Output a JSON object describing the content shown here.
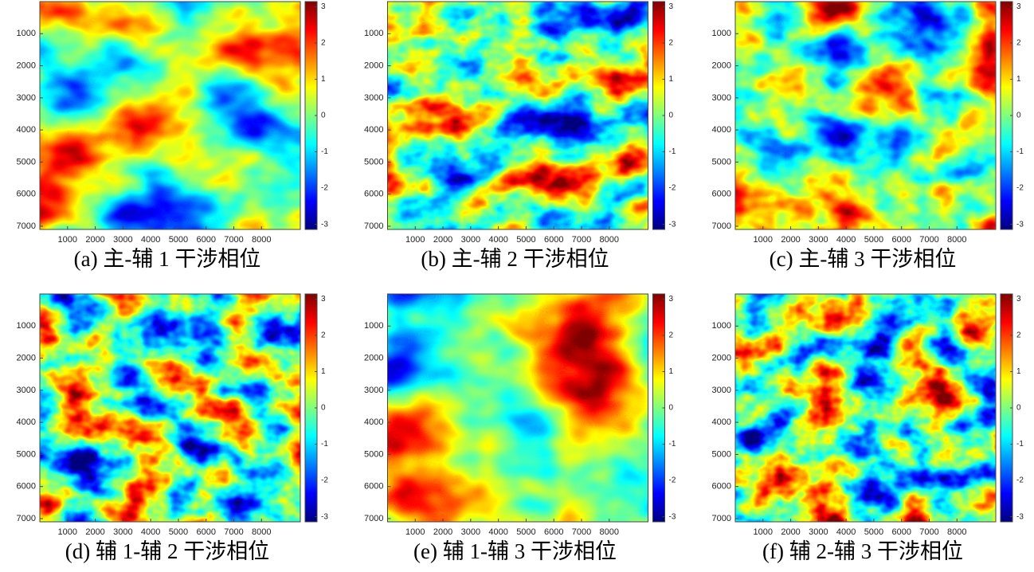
{
  "chart_data": [
    {
      "type": "heatmap",
      "caption": "(a)  主-辅 1 干涉相位",
      "colormap": "jet",
      "xlim": [
        0,
        9400
      ],
      "ylim": [
        0,
        7100
      ],
      "xticks": [
        1000,
        2000,
        3000,
        4000,
        5000,
        6000,
        7000,
        8000
      ],
      "yticks": [
        1000,
        2000,
        3000,
        4000,
        5000,
        6000,
        7000
      ],
      "clim": [
        -3.14,
        3.14
      ],
      "cticks": [
        3,
        2,
        1,
        0,
        -1,
        -2,
        -3
      ]
    },
    {
      "type": "heatmap",
      "caption": "(b)  主-辅 2 干涉相位",
      "colormap": "jet",
      "xlim": [
        0,
        9400
      ],
      "ylim": [
        0,
        7100
      ],
      "xticks": [
        1000,
        2000,
        3000,
        4000,
        5000,
        6000,
        7000,
        8000
      ],
      "yticks": [
        1000,
        2000,
        3000,
        4000,
        5000,
        6000,
        7000
      ],
      "clim": [
        -3.14,
        3.14
      ],
      "cticks": [
        3,
        2,
        1,
        0,
        -1,
        -2,
        -3
      ]
    },
    {
      "type": "heatmap",
      "caption": "(c)  主-辅 3 干涉相位",
      "colormap": "jet",
      "xlim": [
        0,
        9400
      ],
      "ylim": [
        0,
        7100
      ],
      "xticks": [
        1000,
        2000,
        3000,
        4000,
        5000,
        6000,
        7000,
        8000
      ],
      "yticks": [
        1000,
        2000,
        3000,
        4000,
        5000,
        6000,
        7000
      ],
      "clim": [
        -3.14,
        3.14
      ],
      "cticks": [
        3,
        2,
        1,
        0,
        -1,
        -2,
        -3
      ]
    },
    {
      "type": "heatmap",
      "caption": "(d)  辅 1-辅 2 干涉相位",
      "colormap": "jet",
      "xlim": [
        0,
        9400
      ],
      "ylim": [
        0,
        7100
      ],
      "xticks": [
        1000,
        2000,
        3000,
        4000,
        5000,
        6000,
        7000,
        8000
      ],
      "yticks": [
        1000,
        2000,
        3000,
        4000,
        5000,
        6000,
        7000
      ],
      "clim": [
        -3.14,
        3.14
      ],
      "cticks": [
        3,
        2,
        1,
        0,
        -1,
        -2,
        -3
      ]
    },
    {
      "type": "heatmap",
      "caption": "(e)  辅 1-辅 3 干涉相位",
      "colormap": "jet",
      "xlim": [
        0,
        9400
      ],
      "ylim": [
        0,
        7100
      ],
      "xticks": [
        1000,
        2000,
        3000,
        4000,
        5000,
        6000,
        7000,
        8000
      ],
      "yticks": [
        1000,
        2000,
        3000,
        4000,
        5000,
        6000,
        7000
      ],
      "clim": [
        -3.14,
        3.14
      ],
      "cticks": [
        3,
        2,
        1,
        0,
        -1,
        -2,
        -3
      ]
    },
    {
      "type": "heatmap",
      "caption": "(f)  辅 2-辅 3 干涉相位",
      "colormap": "jet",
      "xlim": [
        0,
        9400
      ],
      "ylim": [
        0,
        7100
      ],
      "xticks": [
        1000,
        2000,
        3000,
        4000,
        5000,
        6000,
        7000,
        8000
      ],
      "yticks": [
        1000,
        2000,
        3000,
        4000,
        5000,
        6000,
        7000
      ],
      "clim": [
        -3.14,
        3.14
      ],
      "cticks": [
        3,
        2,
        1,
        0,
        -1,
        -2,
        -3
      ]
    }
  ]
}
